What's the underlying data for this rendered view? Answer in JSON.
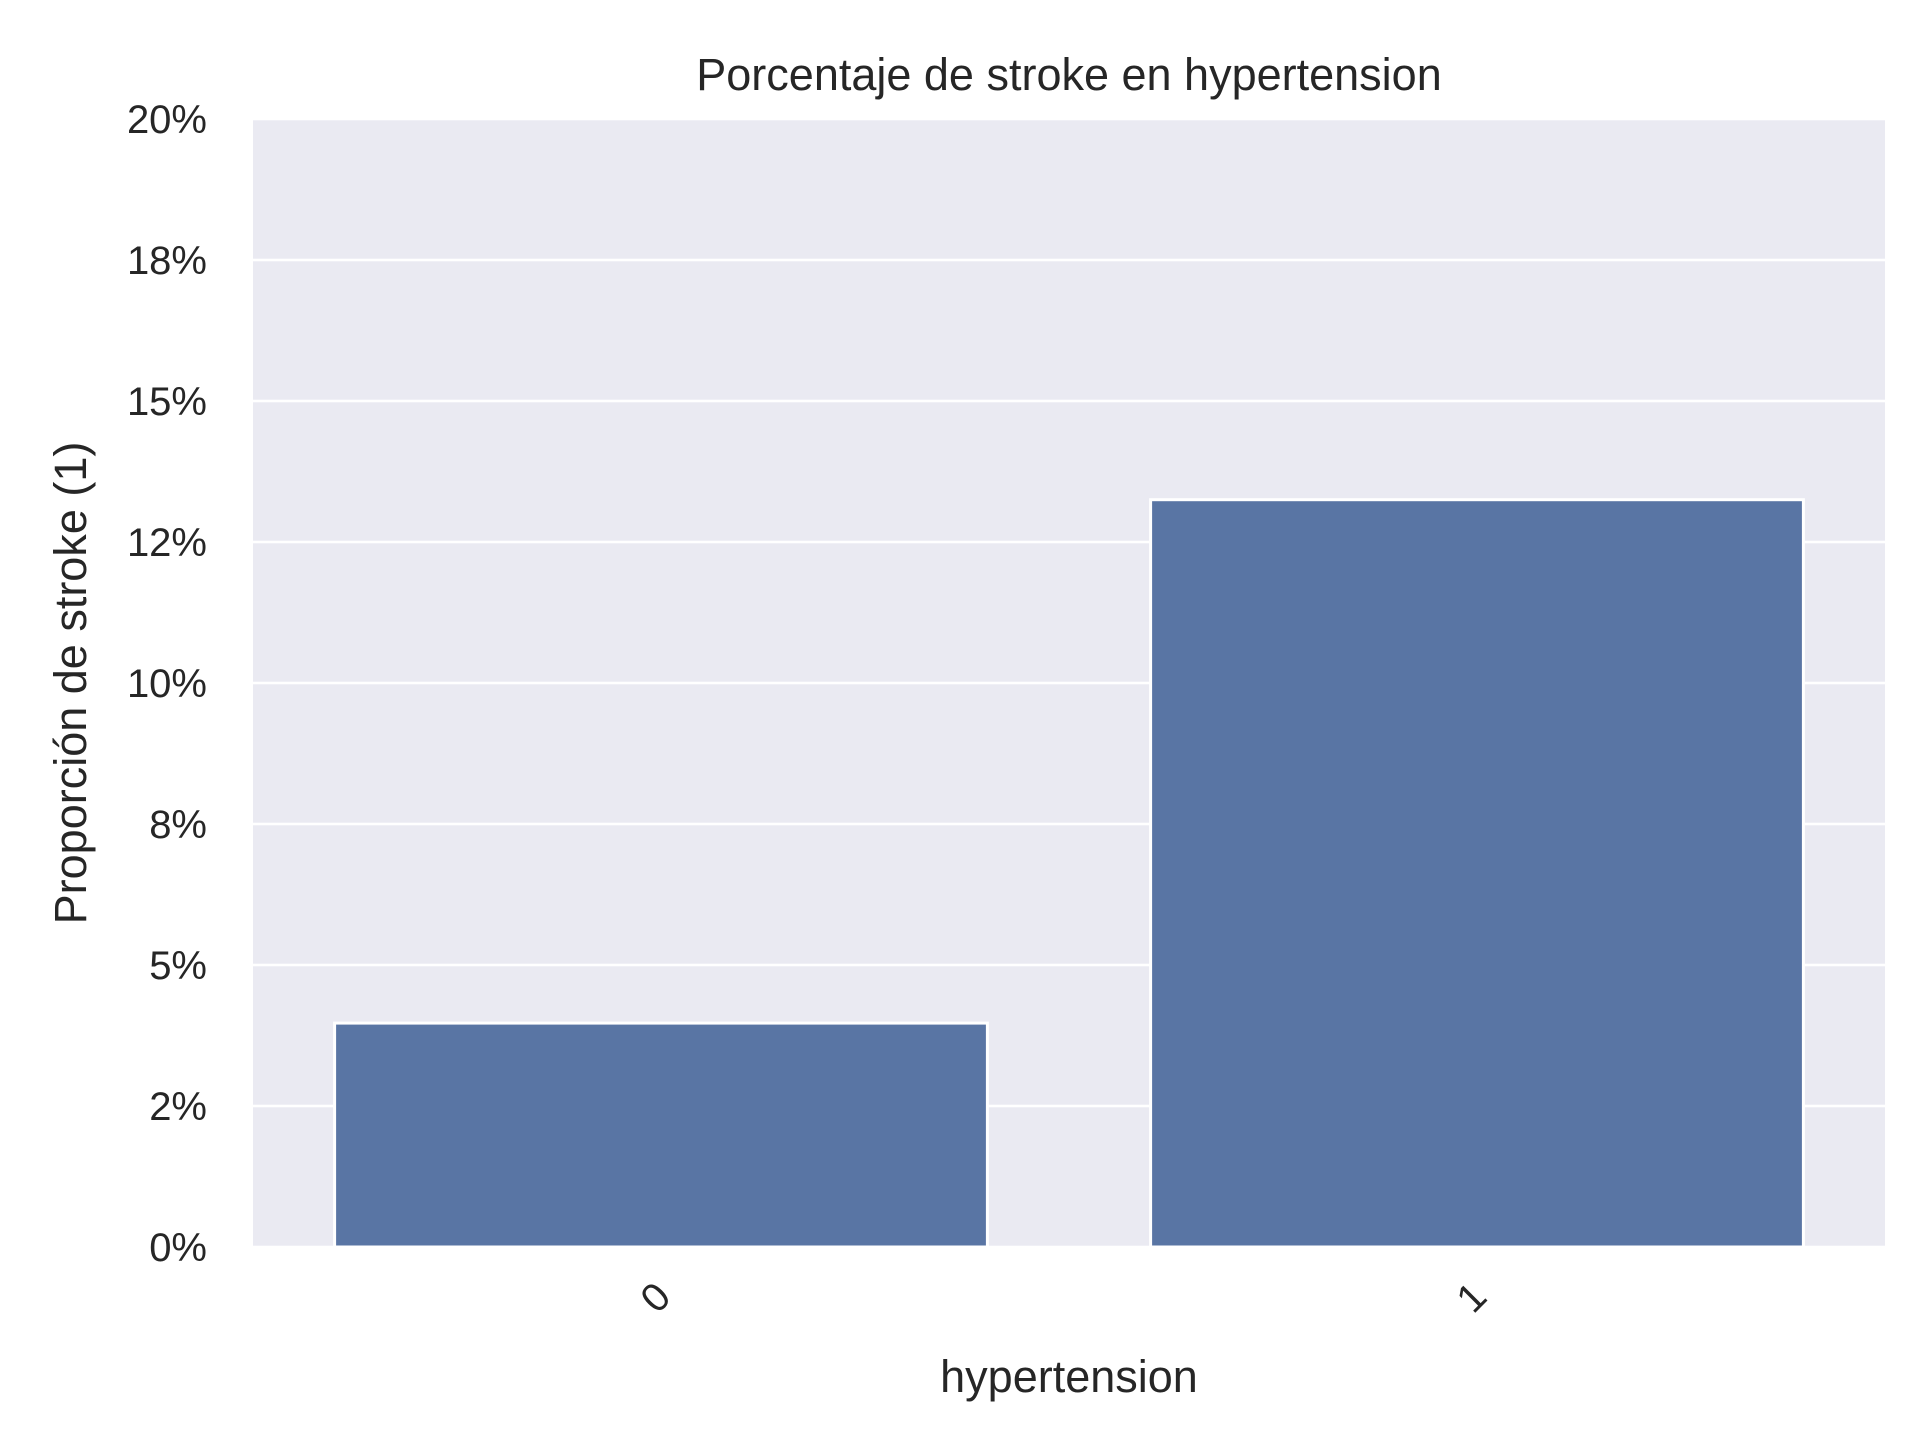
{
  "chart_data": {
    "type": "bar",
    "title": "Porcentaje de stroke en hypertension",
    "xlabel": "hypertension",
    "ylabel": "Proporción de stroke (1)",
    "categories": [
      "0",
      "1"
    ],
    "values": [
      0.0397,
      0.1325
    ],
    "ylim": [
      0,
      0.2
    ],
    "yticks": [
      0,
      0.025,
      0.05,
      0.075,
      0.1,
      0.125,
      0.15,
      0.175,
      0.2
    ],
    "ytick_labels": [
      "0%",
      "2%",
      "5%",
      "8%",
      "10%",
      "12%",
      "15%",
      "18%",
      "20%"
    ],
    "grid": true,
    "bar_color": "#5975a4",
    "background_color": "#eaeaf2",
    "grid_color": "#ffffff"
  }
}
